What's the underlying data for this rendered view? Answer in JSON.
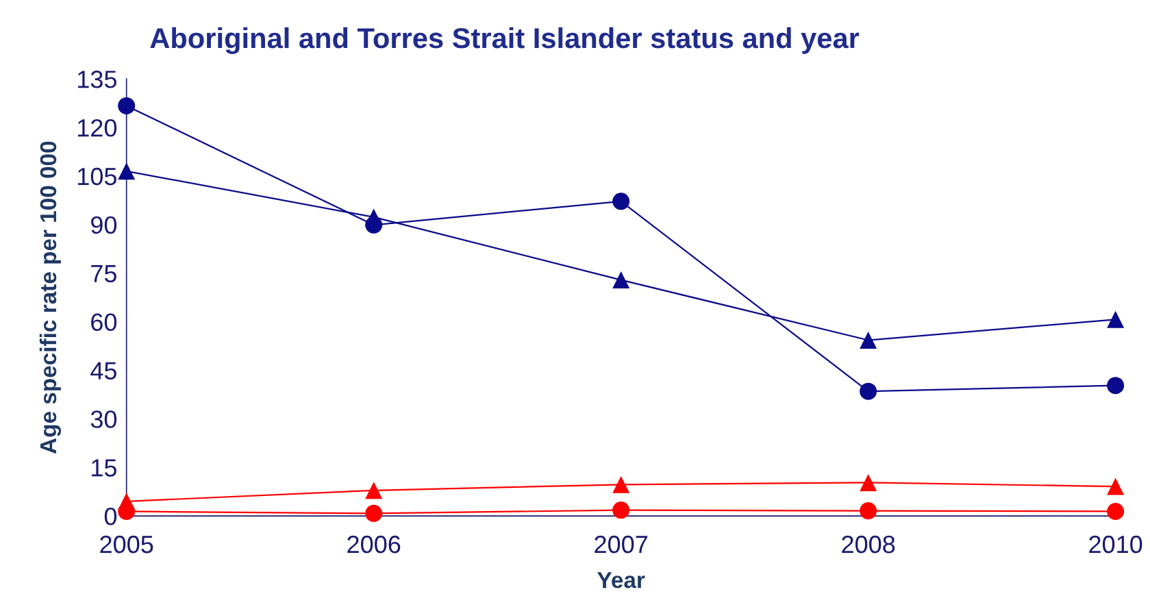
{
  "chart_data": {
    "type": "line",
    "title": "Aboriginal and Torres Strait Islander status and year",
    "xlabel": "Year",
    "ylabel": "Age specific rate per 100 000",
    "categories": [
      "2005",
      "2006",
      "2007",
      "2008",
      "2010"
    ],
    "series": [
      {
        "color": "#0a0a8c",
        "marker": "circle",
        "values": [
          126.7,
          89.9,
          97.2,
          38.5,
          40.3
        ]
      },
      {
        "color": "#0a0a8c",
        "marker": "triangle",
        "values": [
          106.5,
          92.3,
          72.9,
          54.3,
          60.7
        ]
      },
      {
        "color": "#ff0000",
        "marker": "triangle",
        "values": [
          4.5,
          7.9,
          9.7,
          10.3,
          9.1
        ]
      },
      {
        "color": "#ff0000",
        "marker": "circle",
        "values": [
          1.4,
          0.8,
          1.8,
          1.6,
          1.4
        ]
      }
    ],
    "ylim": [
      0,
      135
    ],
    "yticks": [
      0,
      15,
      30,
      45,
      60,
      75,
      90,
      105,
      120,
      135
    ],
    "grid": false,
    "legend": false,
    "line_style": "solid"
  }
}
